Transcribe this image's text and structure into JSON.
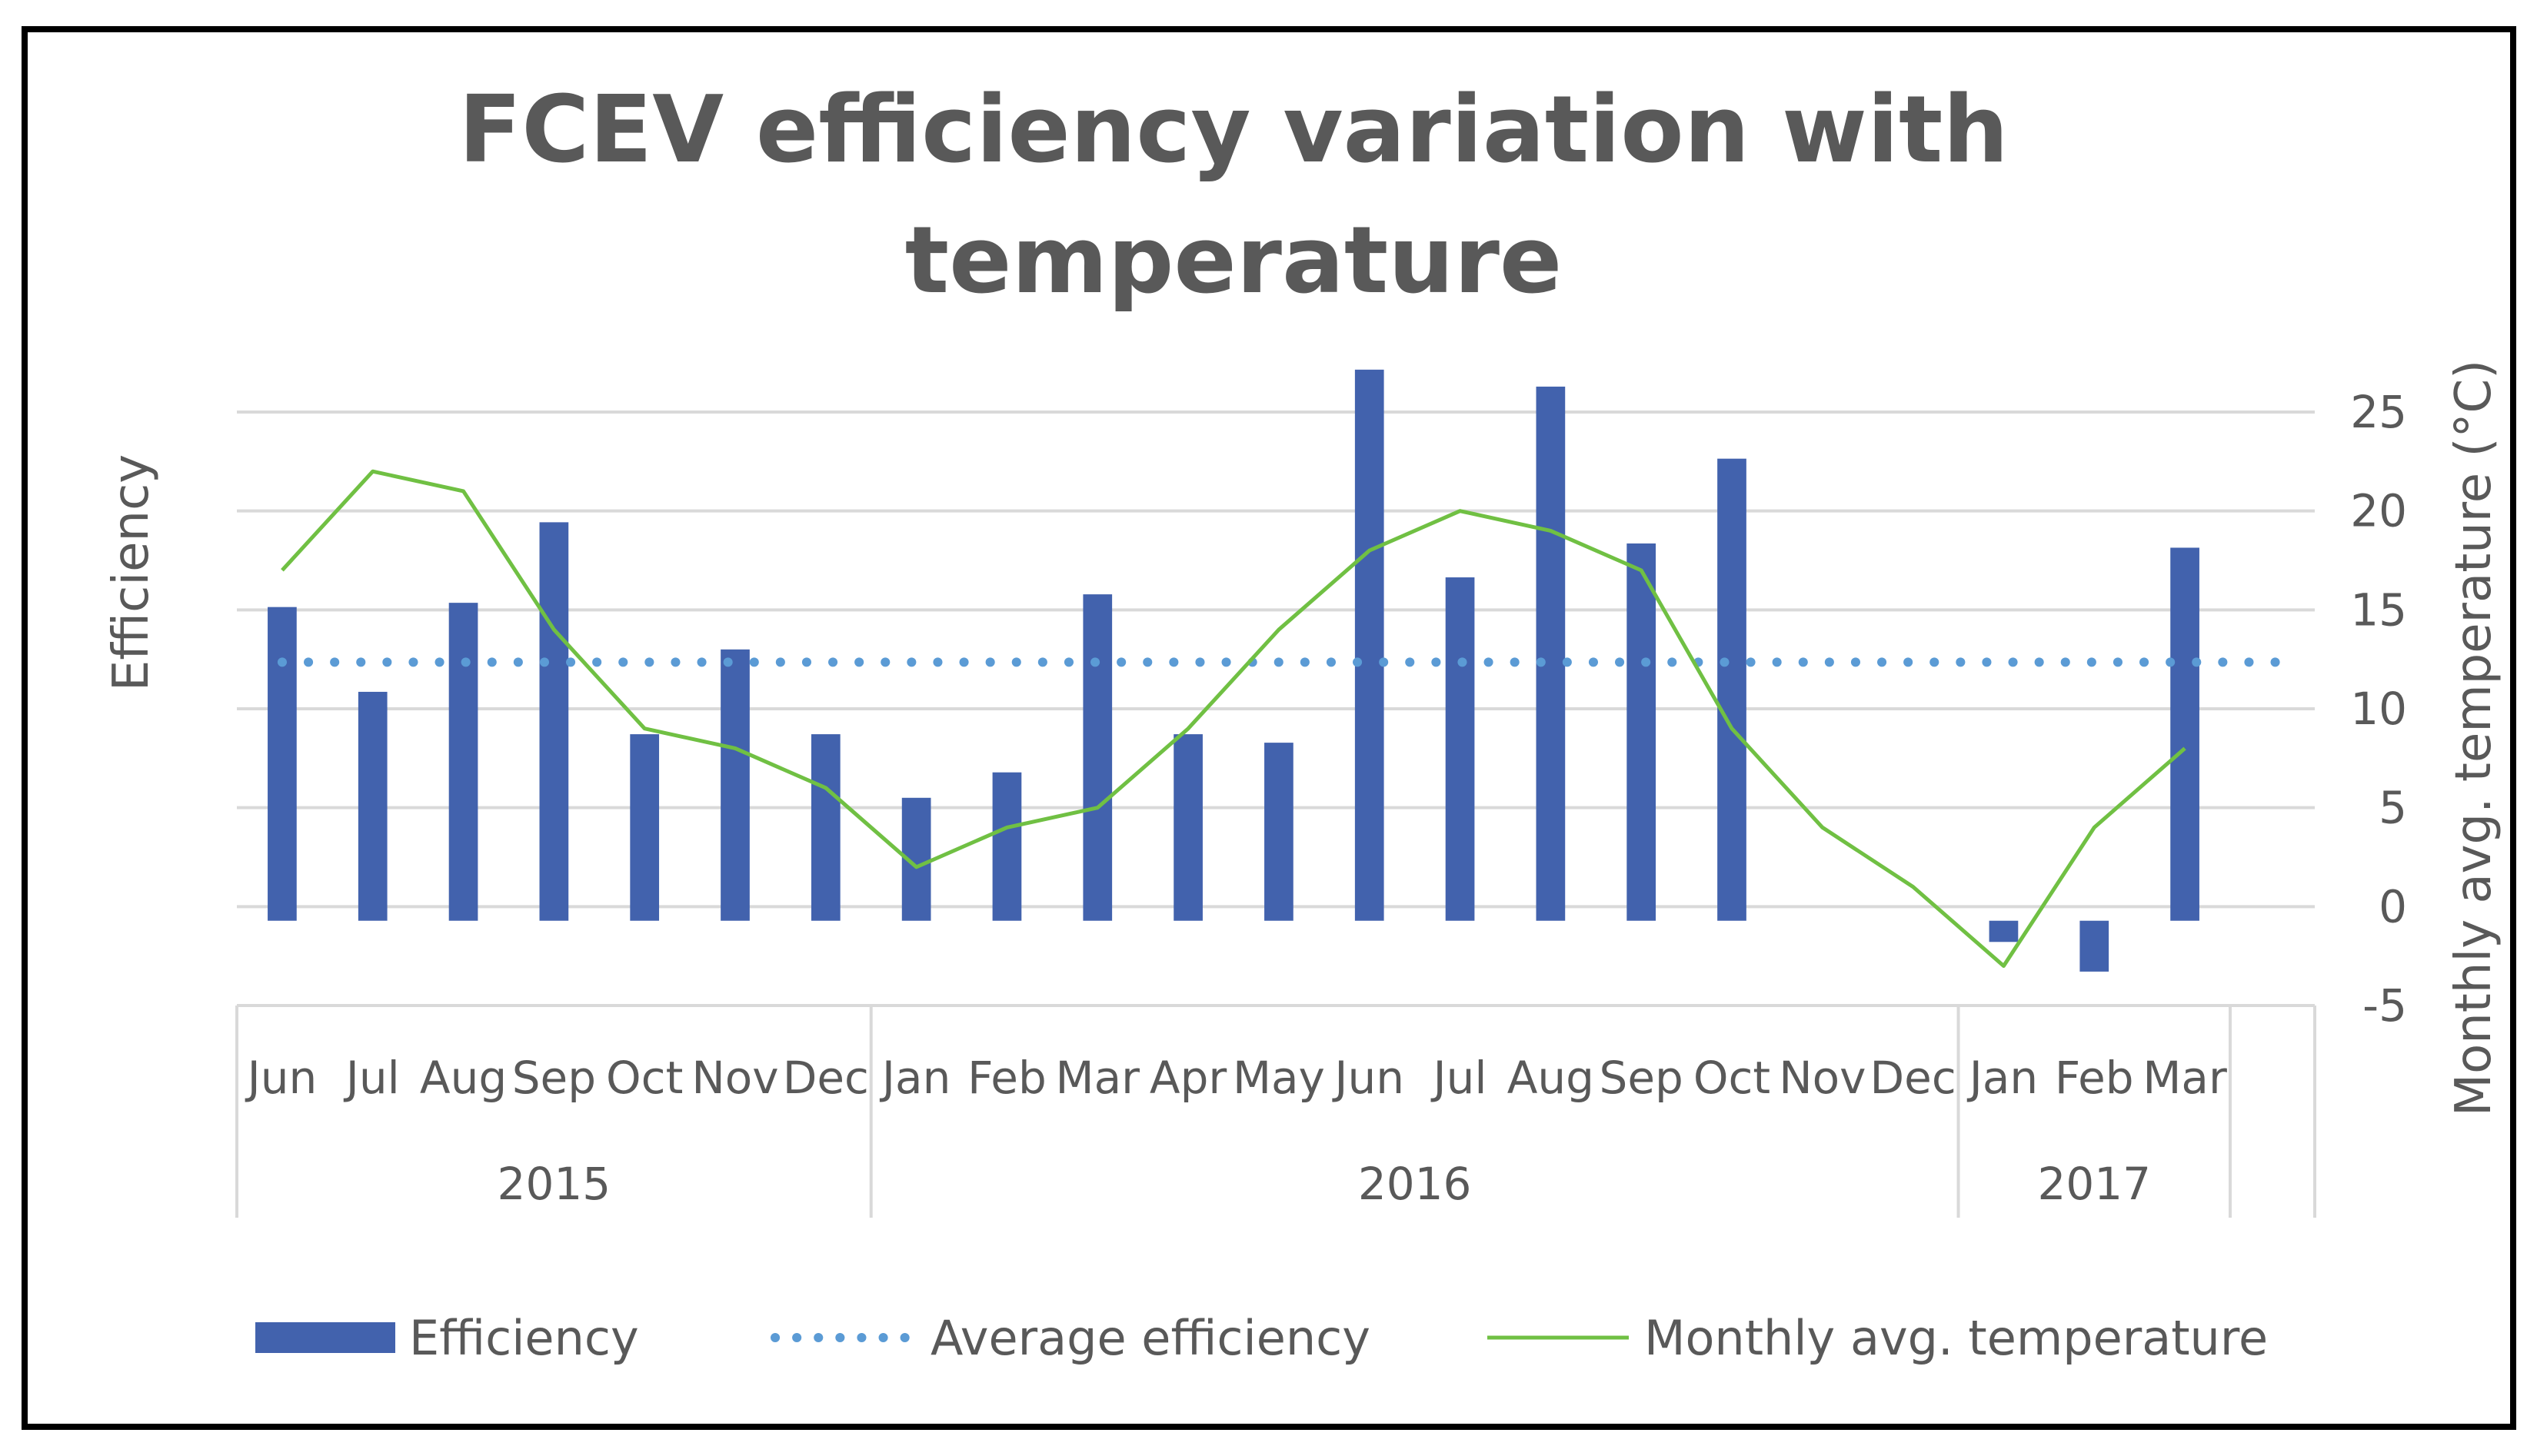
{
  "chart_data": {
    "type": "bar",
    "title_lines": [
      "FCEV efficiency variation with",
      "temperature"
    ],
    "ylabel": "Efficiency",
    "y2label": "Monthly avg. temperature (°C)",
    "y2lim": [
      -5,
      25
    ],
    "y2ticks": [
      "25",
      "20",
      "15",
      "10",
      "5",
      "0",
      "-5"
    ],
    "categories": [
      "Jun",
      "Jul",
      "Aug",
      "Sep",
      "Oct",
      "Nov",
      "Dec",
      "Jan",
      "Feb",
      "Mar",
      "Apr",
      "May",
      "Jun",
      "Jul",
      "Aug",
      "Sep",
      "Oct",
      "Nov",
      "Dec",
      "Jan",
      "Feb",
      "Mar"
    ],
    "year_groups": [
      {
        "label": "2015",
        "count": 7
      },
      {
        "label": "2016",
        "count": 12
      },
      {
        "label": "2017",
        "count": 3
      }
    ],
    "series": [
      {
        "name": "Efficiency",
        "type": "bar",
        "axis": "primary",
        "color": "#4262ad",
        "values": [
          3.7,
          2.7,
          3.75,
          4.7,
          2.2,
          3.2,
          2.2,
          1.45,
          1.75,
          3.85,
          2.2,
          2.1,
          6.5,
          4.05,
          6.3,
          4.45,
          5.45,
          null,
          null,
          -0.25,
          -0.6,
          4.4
        ]
      },
      {
        "name": "Average efficiency",
        "type": "line",
        "style": "dotted",
        "axis": "primary",
        "color": "#5b9bd5",
        "value": 3.05
      },
      {
        "name": "Monthly avg. temperature",
        "type": "line",
        "axis": "secondary",
        "color": "#70c043",
        "values": [
          17,
          22,
          21,
          14,
          9,
          8,
          6,
          2,
          4,
          5,
          9,
          14,
          18,
          20,
          19,
          17,
          9,
          4,
          1,
          -3,
          4,
          8
        ]
      }
    ],
    "grid": true,
    "legend_position": "bottom"
  }
}
